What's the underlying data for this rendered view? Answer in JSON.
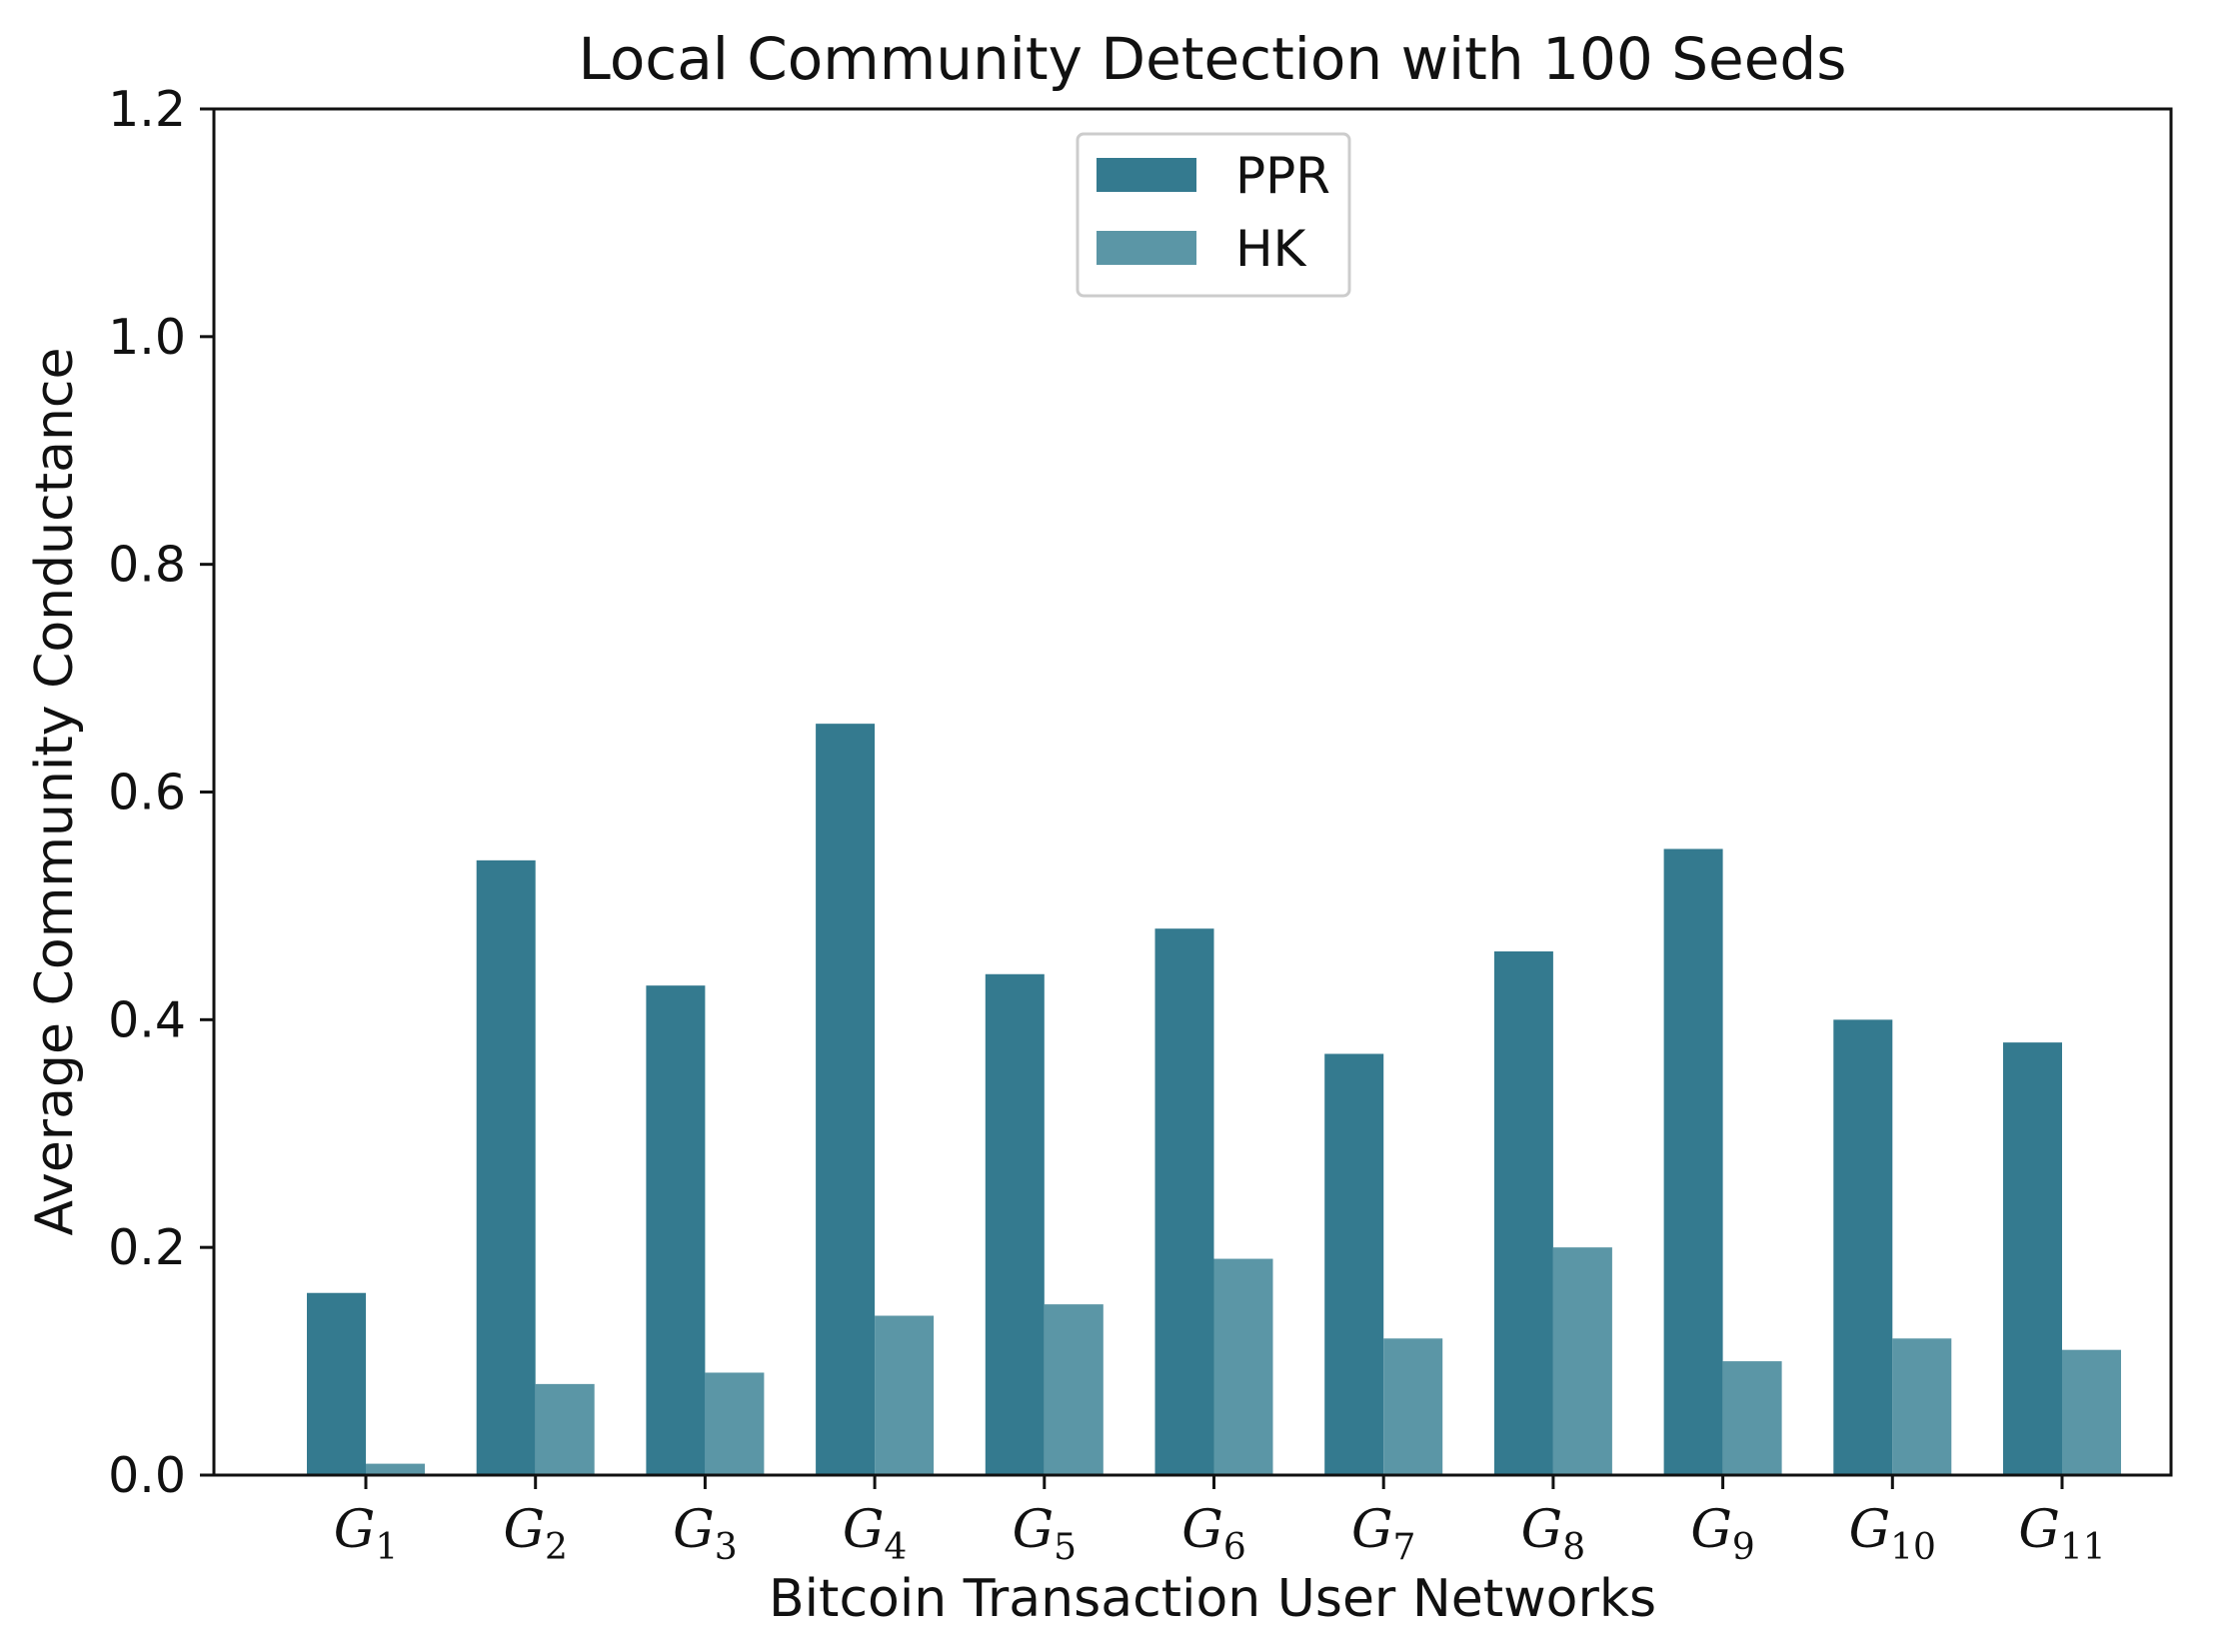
{
  "chart_data": {
    "type": "bar",
    "title": "Local Community Detection with 100 Seeds",
    "xlabel": "Bitcoin Transaction User Networks",
    "ylabel": "Average Community Conductance",
    "ylim": [
      0,
      1.2
    ],
    "yticks": [
      "0.0",
      "0.2",
      "0.4",
      "0.6",
      "0.8",
      "1.0",
      "1.2"
    ],
    "ytick_values": [
      0,
      0.2,
      0.4,
      0.6,
      0.8,
      1.0,
      1.2
    ],
    "categories": [
      {
        "base": "G",
        "sub": "1"
      },
      {
        "base": "G",
        "sub": "2"
      },
      {
        "base": "G",
        "sub": "3"
      },
      {
        "base": "G",
        "sub": "4"
      },
      {
        "base": "G",
        "sub": "5"
      },
      {
        "base": "G",
        "sub": "6"
      },
      {
        "base": "G",
        "sub": "7"
      },
      {
        "base": "G",
        "sub": "8"
      },
      {
        "base": "G",
        "sub": "9"
      },
      {
        "base": "G",
        "sub": "10"
      },
      {
        "base": "G",
        "sub": "11"
      }
    ],
    "series": [
      {
        "name": "PPR",
        "color": "#347a8f",
        "values": [
          0.16,
          0.54,
          0.43,
          0.66,
          0.44,
          0.48,
          0.37,
          0.46,
          0.55,
          0.4,
          0.38
        ]
      },
      {
        "name": "HK",
        "color": "#5b96a6",
        "values": [
          0.01,
          0.08,
          0.09,
          0.14,
          0.15,
          0.19,
          0.12,
          0.2,
          0.1,
          0.12,
          0.11
        ]
      }
    ],
    "legend_position": "top-center",
    "grid": false
  }
}
